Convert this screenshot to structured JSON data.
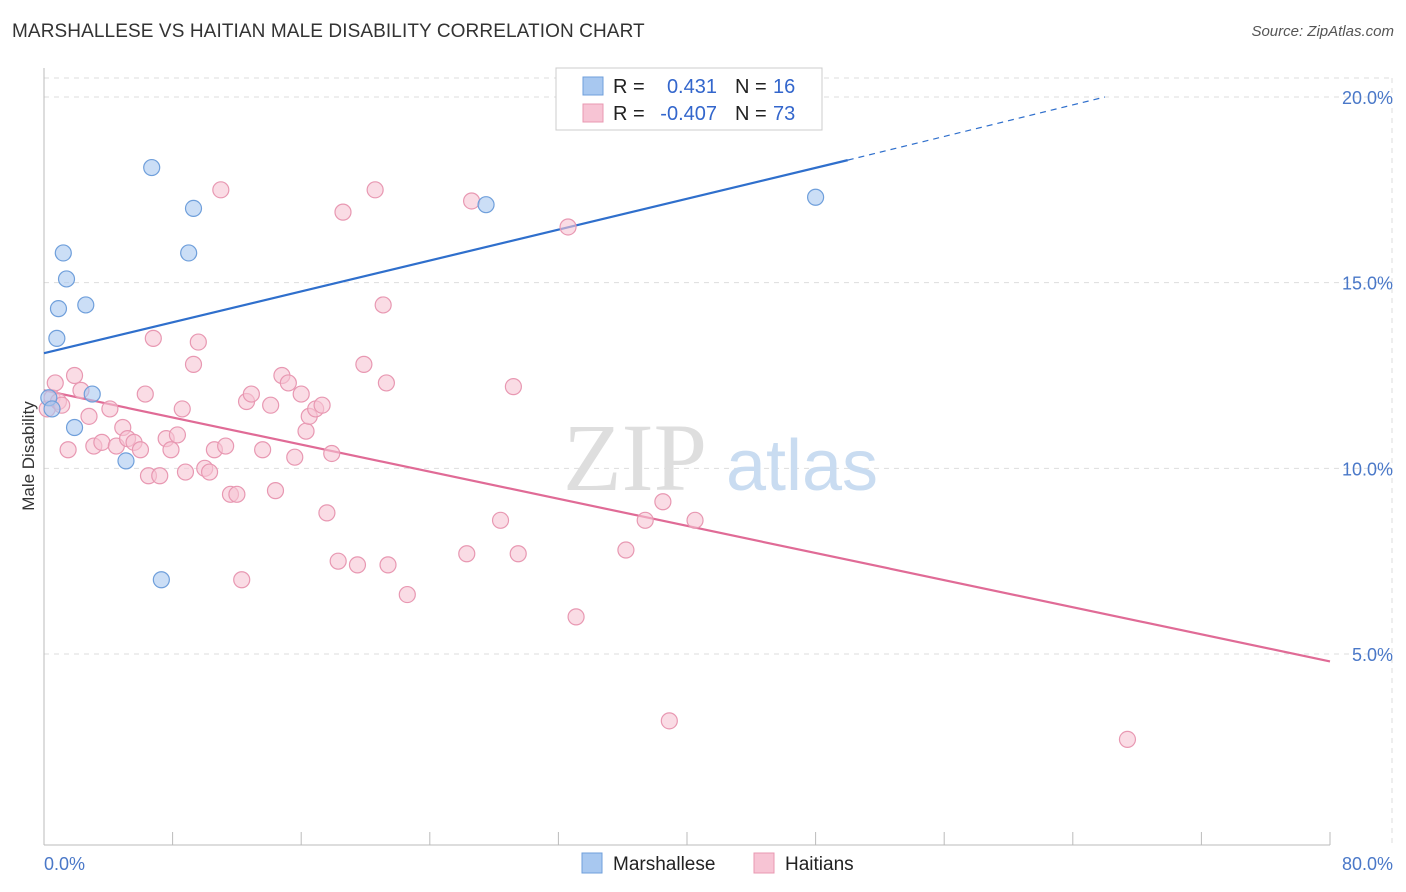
{
  "header": {
    "title": "MARSHALLESE VS HAITIAN MALE DISABILITY CORRELATION CHART",
    "source": "Source: ZipAtlas.com"
  },
  "watermark": {
    "zip": "ZIP",
    "atlas": "atlas"
  },
  "legend": {
    "rows": [
      {
        "r_label": "R =",
        "r_value": "0.431",
        "n_label": "N =",
        "n_value": "16"
      },
      {
        "r_label": "R =",
        "r_value": "-0.407",
        "n_label": "N =",
        "n_value": "73"
      }
    ]
  },
  "bottom_legend": {
    "series1": "Marshallese",
    "series2": "Haitians"
  },
  "colors": {
    "marshallese_fill": "#a8c8f0",
    "marshallese_stroke": "#6f9fdb",
    "marshallese_line": "#2f6fcc",
    "haitians_fill": "#f7c4d4",
    "haitians_stroke": "#e898b2",
    "haitians_line": "#e06b96",
    "tick_text": "#4a78c8",
    "grid": "#dddddd"
  },
  "chart_data": {
    "type": "scatter",
    "title": "MARSHALLESE VS HAITIAN MALE DISABILITY CORRELATION CHART",
    "xlabel": "",
    "ylabel": "Male Disability",
    "xlim": [
      0,
      80
    ],
    "ylim": [
      0,
      20.5
    ],
    "x_tick_labels": [
      "0.0%",
      "80.0%"
    ],
    "y_ticks": [
      5,
      10,
      15,
      20
    ],
    "y_tick_labels": [
      "5.0%",
      "10.0%",
      "15.0%",
      "20.0%"
    ],
    "grid": true,
    "legend_placement": "top-center",
    "series": [
      {
        "name": "Marshallese",
        "R": 0.431,
        "N": 16,
        "trend": {
          "x0": 0,
          "y0": 13.1,
          "x1": 50,
          "y1": 18.3,
          "dashed_to_x": 66,
          "dashed_to_y": 20.0
        },
        "points": [
          [
            0.3,
            11.9
          ],
          [
            0.5,
            11.6
          ],
          [
            0.8,
            13.5
          ],
          [
            0.9,
            14.3
          ],
          [
            1.2,
            15.8
          ],
          [
            1.4,
            15.1
          ],
          [
            1.9,
            11.1
          ],
          [
            2.6,
            14.4
          ],
          [
            3.0,
            12.0
          ],
          [
            5.1,
            10.2
          ],
          [
            6.7,
            18.1
          ],
          [
            7.3,
            7.0
          ],
          [
            9.0,
            15.8
          ],
          [
            9.3,
            17.0
          ],
          [
            27.5,
            17.1
          ],
          [
            48.0,
            17.3
          ]
        ]
      },
      {
        "name": "Haitians",
        "R": -0.407,
        "N": 73,
        "trend": {
          "x0": 0,
          "y0": 12.1,
          "x1": 80,
          "y1": 4.8
        },
        "points": [
          [
            0.2,
            11.6
          ],
          [
            0.5,
            11.9
          ],
          [
            0.7,
            12.3
          ],
          [
            0.9,
            11.8
          ],
          [
            1.1,
            11.7
          ],
          [
            1.5,
            10.5
          ],
          [
            1.9,
            12.5
          ],
          [
            2.3,
            12.1
          ],
          [
            2.8,
            11.4
          ],
          [
            3.1,
            10.6
          ],
          [
            3.6,
            10.7
          ],
          [
            4.1,
            11.6
          ],
          [
            4.5,
            10.6
          ],
          [
            4.9,
            11.1
          ],
          [
            5.2,
            10.8
          ],
          [
            5.6,
            10.7
          ],
          [
            6.0,
            10.5
          ],
          [
            6.3,
            12.0
          ],
          [
            6.5,
            9.8
          ],
          [
            6.8,
            13.5
          ],
          [
            7.2,
            9.8
          ],
          [
            7.6,
            10.8
          ],
          [
            7.9,
            10.5
          ],
          [
            8.3,
            10.9
          ],
          [
            8.6,
            11.6
          ],
          [
            8.8,
            9.9
          ],
          [
            9.3,
            12.8
          ],
          [
            9.6,
            13.4
          ],
          [
            10.0,
            10.0
          ],
          [
            10.3,
            9.9
          ],
          [
            10.6,
            10.5
          ],
          [
            11.0,
            17.5
          ],
          [
            11.3,
            10.6
          ],
          [
            11.6,
            9.3
          ],
          [
            12.0,
            9.3
          ],
          [
            12.3,
            7.0
          ],
          [
            12.6,
            11.8
          ],
          [
            12.9,
            12.0
          ],
          [
            13.6,
            10.5
          ],
          [
            14.1,
            11.7
          ],
          [
            14.4,
            9.4
          ],
          [
            14.8,
            12.5
          ],
          [
            15.2,
            12.3
          ],
          [
            15.6,
            10.3
          ],
          [
            16.0,
            12.0
          ],
          [
            16.3,
            11.0
          ],
          [
            16.5,
            11.4
          ],
          [
            16.9,
            11.6
          ],
          [
            17.3,
            11.7
          ],
          [
            17.6,
            8.8
          ],
          [
            17.9,
            10.4
          ],
          [
            18.3,
            7.5
          ],
          [
            18.6,
            16.9
          ],
          [
            19.5,
            7.4
          ],
          [
            19.9,
            12.8
          ],
          [
            20.6,
            17.5
          ],
          [
            21.1,
            14.4
          ],
          [
            21.3,
            12.3
          ],
          [
            21.4,
            7.4
          ],
          [
            22.6,
            6.6
          ],
          [
            26.3,
            7.7
          ],
          [
            26.6,
            17.2
          ],
          [
            28.4,
            8.6
          ],
          [
            29.2,
            12.2
          ],
          [
            29.5,
            7.7
          ],
          [
            32.6,
            16.5
          ],
          [
            33.1,
            6.0
          ],
          [
            36.2,
            7.8
          ],
          [
            37.4,
            8.6
          ],
          [
            38.5,
            9.1
          ],
          [
            38.9,
            3.2
          ],
          [
            40.5,
            8.6
          ],
          [
            67.4,
            2.7
          ]
        ]
      }
    ]
  }
}
